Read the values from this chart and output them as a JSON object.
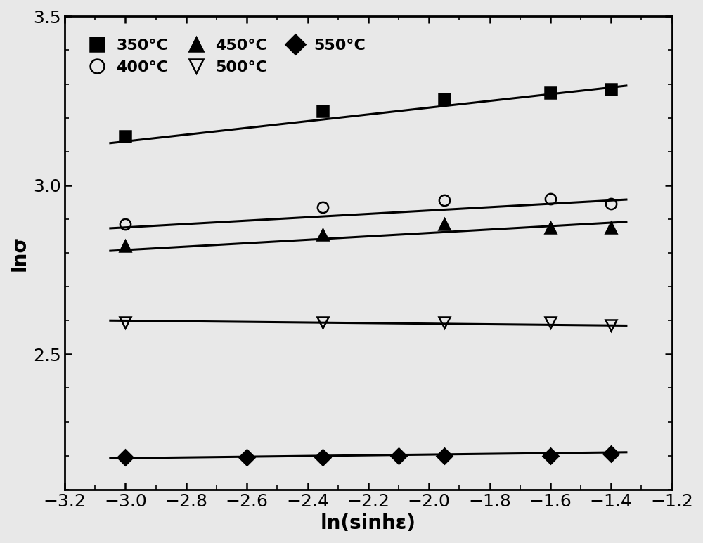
{
  "series": [
    {
      "label": "350°C",
      "marker": "s",
      "fillstyle": "full",
      "x": [
        -3.0,
        -2.35,
        -1.95,
        -1.6,
        -1.4
      ],
      "y": [
        3.145,
        3.22,
        3.255,
        3.275,
        3.285
      ],
      "fit_x": [
        -3.05,
        -1.35
      ],
      "fit_y": [
        3.125,
        3.295
      ]
    },
    {
      "label": "400°C",
      "marker": "o",
      "fillstyle": "none",
      "x": [
        -3.0,
        -2.35,
        -1.95,
        -1.6,
        -1.4
      ],
      "y": [
        2.885,
        2.935,
        2.955,
        2.96,
        2.945
      ],
      "fit_x": [
        -3.05,
        -1.35
      ],
      "fit_y": [
        2.873,
        2.958
      ]
    },
    {
      "label": "450°C",
      "marker": "^",
      "fillstyle": "full",
      "x": [
        -3.0,
        -2.35,
        -1.95,
        -1.6,
        -1.4
      ],
      "y": [
        2.82,
        2.855,
        2.885,
        2.875,
        2.875
      ],
      "fit_x": [
        -3.05,
        -1.35
      ],
      "fit_y": [
        2.806,
        2.892
      ]
    },
    {
      "label": "500°C",
      "marker": "v",
      "fillstyle": "none",
      "x": [
        -3.0,
        -2.35,
        -1.95,
        -1.6,
        -1.4
      ],
      "y": [
        2.595,
        2.595,
        2.595,
        2.595,
        2.585
      ],
      "fit_x": [
        -3.05,
        -1.35
      ],
      "fit_y": [
        2.6,
        2.585
      ]
    },
    {
      "label": "550°C",
      "marker": "D",
      "fillstyle": "full",
      "x": [
        -3.0,
        -2.6,
        -2.35,
        -2.1,
        -1.95,
        -1.6,
        -1.4
      ],
      "y": [
        2.195,
        2.195,
        2.195,
        2.2,
        2.2,
        2.2,
        2.205
      ],
      "fit_x": [
        -3.05,
        -1.35
      ],
      "fit_y": [
        2.192,
        2.21
      ]
    }
  ],
  "xlim": [
    -3.2,
    -1.2
  ],
  "ylim": [
    2.1,
    3.5
  ],
  "xticks": [
    -3.2,
    -3.0,
    -2.8,
    -2.6,
    -2.4,
    -2.2,
    -2.0,
    -1.8,
    -1.6,
    -1.4,
    -1.2
  ],
  "yticks": [
    2.5,
    3.0,
    3.5
  ],
  "xlabel": "ln(sinhε)",
  "ylabel": "lnσ",
  "line_color": "#000000",
  "marker_color": "#000000",
  "marker_size": 11,
  "linewidth": 2.2,
  "tick_fontsize": 18,
  "label_fontsize": 20,
  "legend_fontsize": 16,
  "bg_color": "#e8e8e8"
}
